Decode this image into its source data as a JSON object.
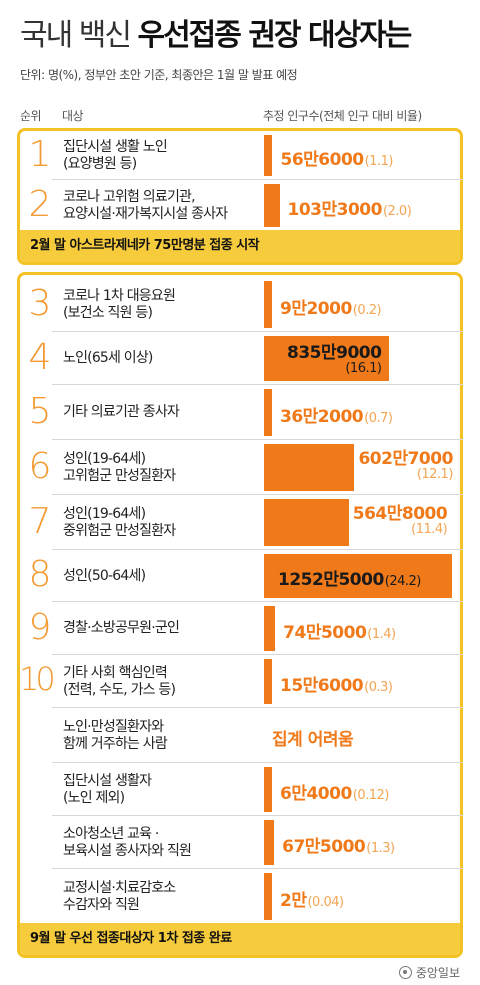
{
  "title": {
    "light": "국내 백신 ",
    "bold": "우선접종 권장 대상자는"
  },
  "subtitle": "단위: 명(%), 정부안 초안 기준, 최종안은 1월 말 발표 예정",
  "headers": {
    "rank": "순위",
    "target": "대상",
    "count": "추정 인구수(전체 인구 대비 비율)"
  },
  "footnotes": {
    "feb": "2월 말 아스트라제네카 75만명분 접종 시작",
    "sep": "9월 말 우선 접종대상자 1차 접종 완료"
  },
  "credit": "중앙일보",
  "chart_data": {
    "type": "bar",
    "unit": "명(%)",
    "rows": [
      {
        "rank": "1",
        "label": "집단시설 생활 노인\n(요양병원 등)",
        "value": 566000,
        "display": "56만6000",
        "pct": "(1.1)"
      },
      {
        "rank": "2",
        "label": "코로나 고위험 의료기관,\n요양시설·재가복지시설 종사자",
        "value": 1033000,
        "display": "103만3000",
        "pct": "(2.0)"
      },
      {
        "rank": "3",
        "label": "코로나 1차 대응요원\n(보건소 직원 등)",
        "value": 92000,
        "display": "9만2000",
        "pct": "(0.2)"
      },
      {
        "rank": "4",
        "label": "노인(65세 이상)",
        "value": 8359000,
        "display": "835만9000",
        "pct": "(16.1)"
      },
      {
        "rank": "5",
        "label": "기타 의료기관 종사자",
        "value": 362000,
        "display": "36만2000",
        "pct": "(0.7)"
      },
      {
        "rank": "6",
        "label": "성인(19-64세)\n고위험군 만성질환자",
        "value": 6027000,
        "display": "602만7000",
        "pct": "(12.1)"
      },
      {
        "rank": "7",
        "label": "성인(19-64세)\n중위험군 만성질환자",
        "value": 5648000,
        "display": "564만8000",
        "pct": "(11.4)"
      },
      {
        "rank": "8",
        "label": "성인(50-64세)",
        "value": 12525000,
        "display": "1252만5000",
        "pct": "(24.2)"
      },
      {
        "rank": "9",
        "label": "경찰·소방공무원·군인",
        "value": 745000,
        "display": "74만5000",
        "pct": "(1.4)"
      },
      {
        "rank": "10",
        "label": "기타 사회 핵심인력\n(전력, 수도, 가스 등)",
        "value": 156000,
        "display": "15만6000",
        "pct": "(0.3)"
      },
      {
        "rank": "",
        "label": "노인·만성질환자와\n함께 거주하는 사람",
        "value": null,
        "display": "집계 어려움",
        "pct": ""
      },
      {
        "rank": "",
        "label": "집단시설 생활자\n(노인 제외)",
        "value": 64000,
        "display": "6만4000",
        "pct": "(0.12)"
      },
      {
        "rank": "",
        "label": "소아청소년 교육 ·\n보육시설 종사자와 직원",
        "value": 675000,
        "display": "67만5000",
        "pct": "(1.3)"
      },
      {
        "rank": "",
        "label": "교정시설·치료감호소\n수감자와 직원",
        "value": 20000,
        "display": "2만",
        "pct": "(0.04)"
      }
    ]
  }
}
